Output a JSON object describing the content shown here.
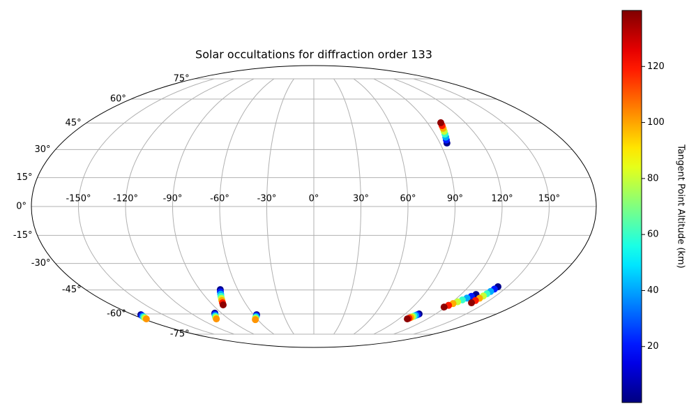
{
  "chart_data": {
    "type": "scatter",
    "projection": "mollweide",
    "title": "Solar occultations for diffraction order 133",
    "xlim": [
      -180,
      180
    ],
    "ylim": [
      -90,
      90
    ],
    "xticks": [
      {
        "value": -150,
        "label": "-150°"
      },
      {
        "value": -120,
        "label": "-120°"
      },
      {
        "value": -90,
        "label": "-90°"
      },
      {
        "value": -60,
        "label": "-60°"
      },
      {
        "value": -30,
        "label": "-30°"
      },
      {
        "value": 0,
        "label": "0°"
      },
      {
        "value": 30,
        "label": "30°"
      },
      {
        "value": 60,
        "label": "60°"
      },
      {
        "value": 90,
        "label": "90°"
      },
      {
        "value": 120,
        "label": "120°"
      },
      {
        "value": 150,
        "label": "150°"
      }
    ],
    "yticks": [
      {
        "value": -75,
        "label": "-75°"
      },
      {
        "value": -60,
        "label": "-60°"
      },
      {
        "value": -45,
        "label": "-45°"
      },
      {
        "value": -30,
        "label": "-30°"
      },
      {
        "value": -15,
        "label": "-15°"
      },
      {
        "value": 0,
        "label": "0°"
      },
      {
        "value": 15,
        "label": "15°"
      },
      {
        "value": 30,
        "label": "30°"
      },
      {
        "value": 45,
        "label": "45°"
      },
      {
        "value": 60,
        "label": "60°"
      },
      {
        "value": 75,
        "label": "75°"
      }
    ],
    "grid": true,
    "colormap": "jet",
    "clim": [
      0,
      140
    ],
    "cticks": [
      20,
      40,
      60,
      80,
      100,
      120
    ],
    "colorbar_label": "Tangent Point Altitude (km)",
    "series": [
      {
        "x": [
          95.0,
          95.8,
          96.6,
          97.4,
          98.2,
          99.0,
          99.8,
          100.6
        ],
        "y": [
          33.6,
          35.3,
          36.9,
          38.6,
          40.2,
          41.9,
          43.5,
          45.2
        ],
        "c": [
          2,
          21,
          41,
          60,
          80,
          99,
          119,
          138
        ]
      },
      {
        "x": [
          -73.8,
          -74.8,
          -75.8,
          -76.8,
          -77.7,
          -78.7,
          -79.7,
          -80.7
        ],
        "y": [
          -44.8,
          -46.1,
          -47.5,
          -48.8,
          -50.1,
          -51.4,
          -52.8,
          -54.1
        ],
        "c": [
          2,
          21,
          41,
          60,
          80,
          99,
          119,
          138
        ]
      },
      {
        "x": [
          -96.6,
          -97.9,
          -99.2,
          -100.4,
          -101.7,
          -103.0
        ],
        "y": [
          -59.5,
          -60.3,
          -61.1,
          -61.8,
          -62.6,
          -63.4
        ],
        "c": [
          2,
          22,
          42,
          62,
          82,
          102
        ]
      },
      {
        "x": [
          -56.9,
          -58.0,
          -59.1,
          -60.3,
          -61.4,
          -62.5
        ],
        "y": [
          -60.5,
          -61.2,
          -61.9,
          -62.5,
          -63.2,
          -63.9
        ],
        "c": [
          2,
          22,
          42,
          62,
          82,
          102
        ]
      },
      {
        "x": [
          -172,
          -173,
          -174,
          -175,
          -176,
          -177
        ],
        "y": [
          -60.5,
          -61.1,
          -61.7,
          -62.2,
          -62.8,
          -63.4
        ],
        "c": [
          2,
          22,
          42,
          62,
          82,
          102
        ]
      },
      {
        "x": [
          103.7,
          103.0,
          102.3,
          101.6,
          100.9,
          100.2,
          99.5,
          98.8
        ],
        "y": [
          -60.0,
          -60.5,
          -61.0,
          -61.5,
          -61.9,
          -62.4,
          -62.9,
          -63.4
        ],
        "c": [
          2,
          21,
          41,
          60,
          80,
          99,
          119,
          138
        ]
      },
      {
        "x": [
          132.3,
          130.3,
          128.4,
          126.4,
          124.4,
          122.4,
          120.5,
          118.5
        ],
        "y": [
          -47.7,
          -48.8,
          -49.9,
          -51.0,
          -52.2,
          -53.3,
          -54.4,
          -55.5
        ],
        "c": [
          2,
          21,
          41,
          60,
          80,
          99,
          119,
          138
        ]
      },
      {
        "x": [
          142.7,
          142.0,
          141.2,
          140.5,
          139.8,
          139.1,
          138.3,
          137.6
        ],
        "y": [
          -43.1,
          -44.5,
          -45.9,
          -47.3,
          -48.6,
          -50.0,
          -51.4,
          -52.8
        ],
        "c": [
          2,
          21,
          41,
          60,
          80,
          99,
          119,
          138
        ]
      }
    ]
  }
}
